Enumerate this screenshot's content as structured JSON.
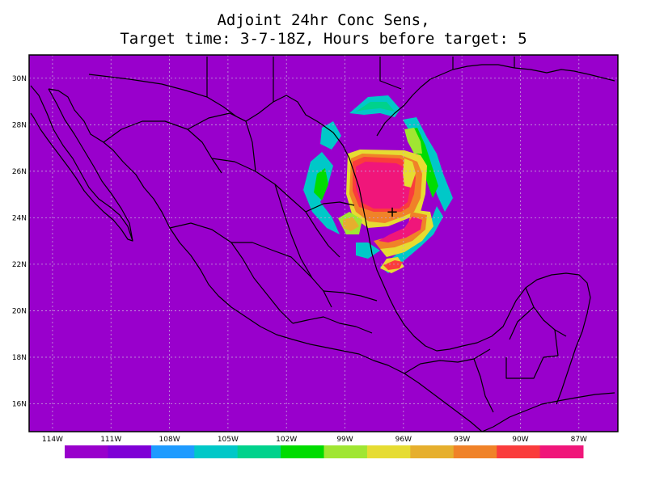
{
  "title": {
    "line1": "Adjoint 24hr Conc Sens,",
    "line2": "Target time: 3-7-18Z, Hours before target: 5"
  },
  "map": {
    "background_color": "#9900cc",
    "grid": true,
    "coastline_color": "#000000",
    "lat_labels": [
      "30N",
      "28N",
      "26N",
      "24N",
      "22N",
      "20N",
      "18N",
      "16N"
    ],
    "lon_labels": [
      "114W",
      "111W",
      "108W",
      "105W",
      "102W",
      "99W",
      "96W",
      "93W",
      "90W",
      "87W"
    ],
    "marker": "+",
    "extent": {
      "lon": [
        -115.2,
        -85.0
      ],
      "lat": [
        14.8,
        31.0
      ]
    }
  },
  "colorbar": {
    "colors": [
      "#9900cc",
      "#7f00d6",
      "#1e9bff",
      "#00c8c8",
      "#00d28c",
      "#00dc00",
      "#a0e632",
      "#e6dc32",
      "#e6af2d",
      "#f08228",
      "#fa3c3c",
      "#f0167a"
    ]
  }
}
